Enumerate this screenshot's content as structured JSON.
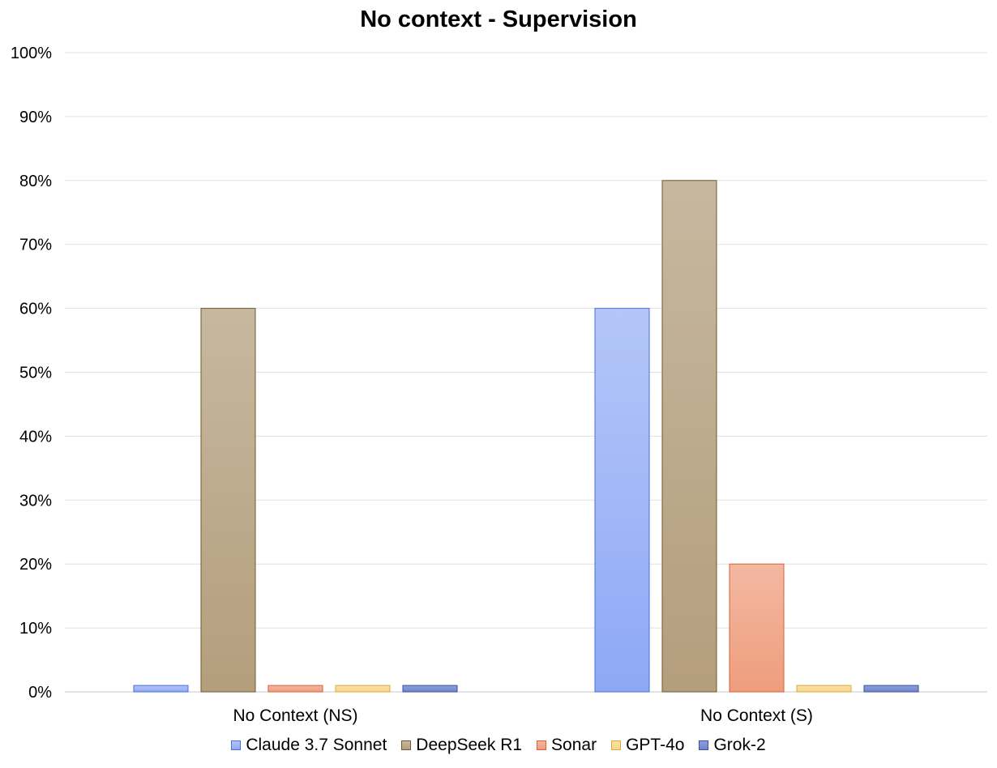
{
  "chart_data": {
    "type": "bar",
    "title": "No context - Supervision",
    "xlabel": "",
    "ylabel": "",
    "ylim": [
      0,
      100
    ],
    "yticks": [
      "0%",
      "10%",
      "20%",
      "30%",
      "40%",
      "50%",
      "60%",
      "70%",
      "80%",
      "90%",
      "100%"
    ],
    "grid": true,
    "legend_position": "bottom",
    "categories": [
      "No Context (NS)",
      "No Context (S)"
    ],
    "series": [
      {
        "name": "Claude 3.7 Sonnet",
        "values": [
          1,
          60
        ],
        "color_top": "#b4c6f8",
        "color_bottom": "#8ea8f6",
        "stroke": "#4a6fd6"
      },
      {
        "name": "DeepSeek R1",
        "values": [
          60,
          80
        ],
        "color_top": "#c6b89f",
        "color_bottom": "#b49e7c",
        "stroke": "#6e5a2e"
      },
      {
        "name": "Sonar",
        "values": [
          1,
          20
        ],
        "color_top": "#f3b8a2",
        "color_bottom": "#ee9d7c",
        "stroke": "#d8623a"
      },
      {
        "name": "GPT-4o",
        "values": [
          1,
          1
        ],
        "color_top": "#fbe2a6",
        "color_bottom": "#f8d689",
        "stroke": "#d9ad3c"
      },
      {
        "name": "Grok-2",
        "values": [
          1,
          1
        ],
        "color_top": "#8da0dc",
        "color_bottom": "#7085cc",
        "stroke": "#3b4f9e"
      }
    ]
  }
}
